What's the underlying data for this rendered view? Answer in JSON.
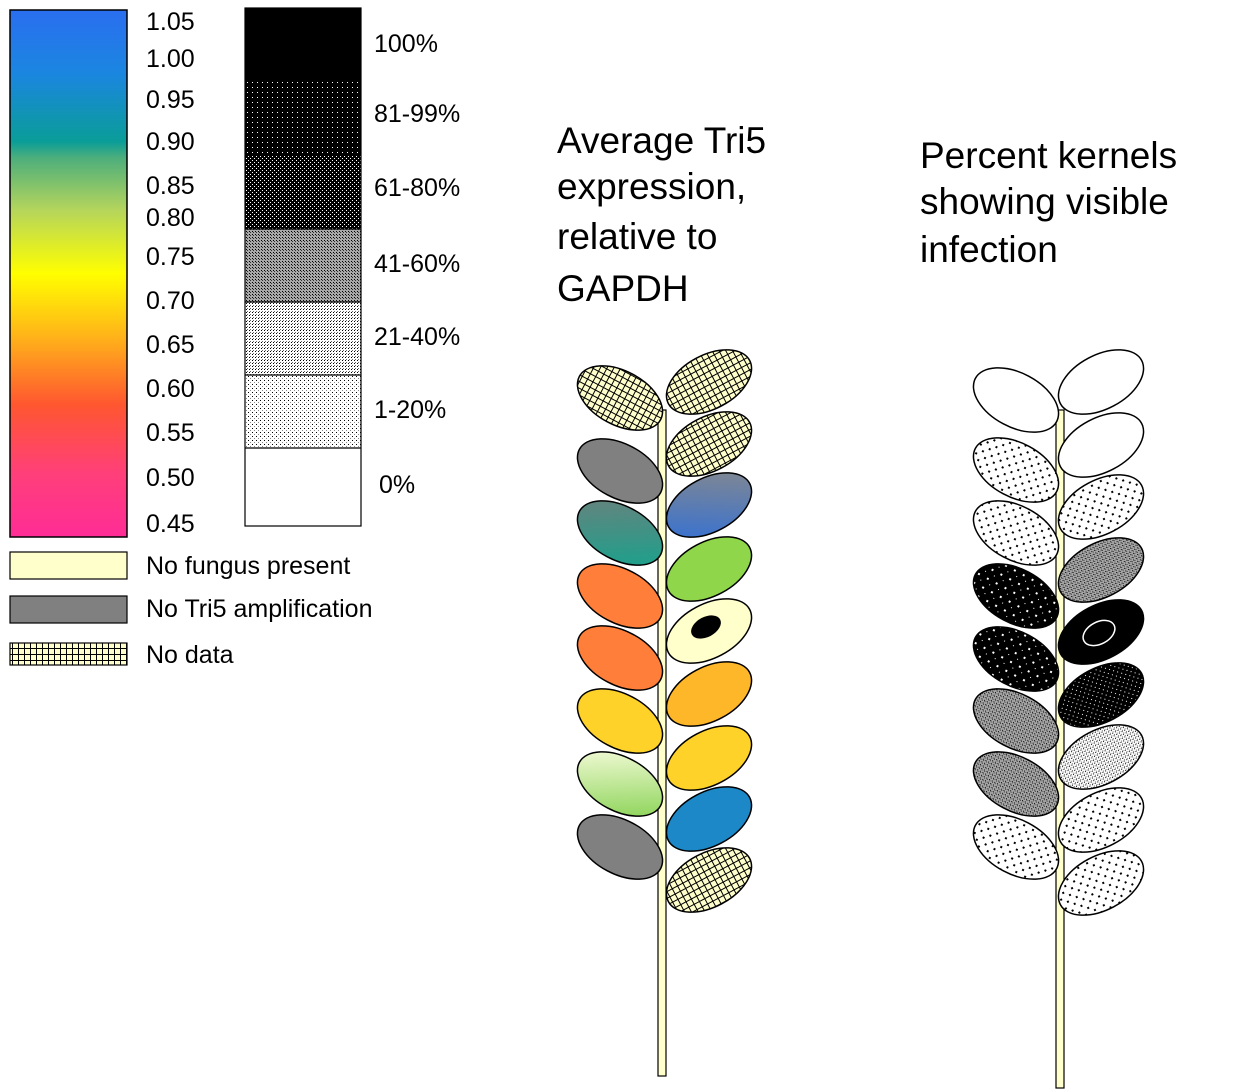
{
  "color_scale": {
    "ticks": [
      "1.05",
      "1.00",
      "0.95",
      "0.90",
      "0.85",
      "0.80",
      "0.75",
      "0.70",
      "0.65",
      "0.60",
      "0.55",
      "0.50",
      "0.45"
    ]
  },
  "pattern_scale": {
    "bands": [
      {
        "label": "100%",
        "pattern": "solid-black"
      },
      {
        "label": "81-99%",
        "pattern": "black-fine-dots"
      },
      {
        "label": "61-80%",
        "pattern": "black-grid-dots"
      },
      {
        "label": "41-60%",
        "pattern": "dark-crosshatch"
      },
      {
        "label": "21-40%",
        "pattern": "medium-dots"
      },
      {
        "label": "1-20%",
        "pattern": "light-dots"
      },
      {
        "label": "0%",
        "pattern": "white"
      }
    ]
  },
  "legend": [
    {
      "label": "No fungus present",
      "fill": "#ffffcc"
    },
    {
      "label": "No Tri5 amplification",
      "fill": "#808080"
    },
    {
      "label": "No data",
      "fill": "grid"
    }
  ],
  "titles": {
    "expression": [
      "Average Tri5",
      "expression,",
      "relative to",
      "GAPDH"
    ],
    "infection": [
      "Percent kernels",
      "showing visible",
      "infection"
    ]
  },
  "colors": {
    "stem": "#ffffcc",
    "no_tri5": "#808080",
    "no_fungus": "#ffffcc"
  },
  "spike_expression": {
    "left": [
      "no-data",
      "no-tri5",
      "0.90",
      "0.63",
      "0.63",
      "0.72",
      "0.85",
      "no-tri5"
    ],
    "right": [
      "no-data",
      "no-data",
      "1.00",
      "0.85",
      "no-fungus",
      "0.70",
      "0.72",
      "0.98",
      "no-data"
    ]
  },
  "spike_infection": {
    "left": [
      "0%",
      "1-20%",
      "1-20%",
      "100%",
      "100%",
      "41-60%",
      "41-60%",
      "1-20%"
    ],
    "right": [
      "0%",
      "0%",
      "1-20%",
      "41-60%",
      "100%",
      "81-99%",
      "21-40%",
      "1-20%",
      "1-20%"
    ]
  }
}
